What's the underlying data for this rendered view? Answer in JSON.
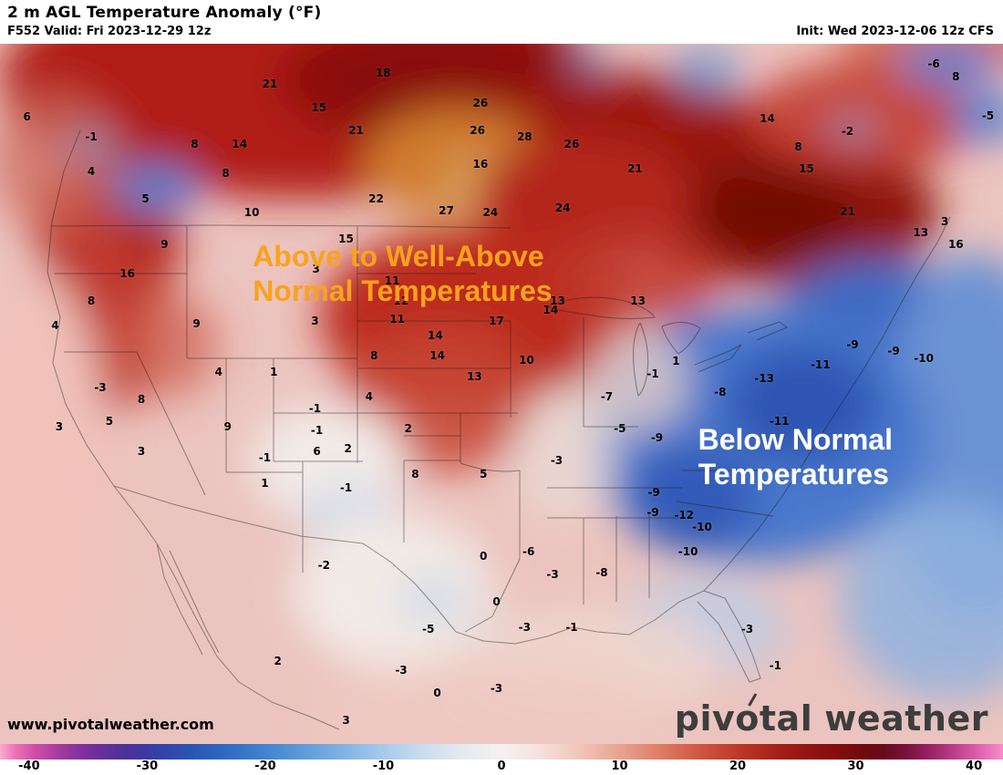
{
  "header": {
    "title": "2 m AGL Temperature Anomaly (°F)",
    "valid": "F552 Valid: Fri 2023-12-29 12z",
    "init": "Init: Wed 2023-12-06 12z CFS"
  },
  "annotations": {
    "warm": {
      "line1": "Above to Well-Above",
      "line2": "Normal Temperatures",
      "color": "#faa21c"
    },
    "cold": {
      "line1": "Below Normal",
      "line2": "Temperatures",
      "color": "#ffffff"
    }
  },
  "watermark": "www.pivotalweather.com",
  "logo": {
    "part1": "piv",
    "part2": "tal",
    "part3": "weather"
  },
  "colorbar": {
    "unit": "°F anomaly",
    "min": -40,
    "max": 40,
    "ticks": [
      "-40",
      "-30",
      "-20",
      "-10",
      "0",
      "10",
      "20",
      "30",
      "40"
    ]
  },
  "map_values": [
    {
      "v": "6",
      "x": 2.7,
      "y": 10.4
    },
    {
      "v": "-1",
      "x": 9.1,
      "y": 13.3
    },
    {
      "v": "4",
      "x": 9.1,
      "y": 18.2
    },
    {
      "v": "5",
      "x": 14.5,
      "y": 22.1
    },
    {
      "v": "8",
      "x": 19.4,
      "y": 14.3
    },
    {
      "v": "14",
      "x": 23.9,
      "y": 14.3
    },
    {
      "v": "8",
      "x": 22.5,
      "y": 18.5
    },
    {
      "v": "10",
      "x": 25.1,
      "y": 24.1
    },
    {
      "v": "21",
      "x": 26.9,
      "y": 5.7
    },
    {
      "v": "15",
      "x": 31.8,
      "y": 9.1
    },
    {
      "v": "18",
      "x": 38.2,
      "y": 4.2
    },
    {
      "v": "21",
      "x": 35.5,
      "y": 12.4
    },
    {
      "v": "22",
      "x": 37.5,
      "y": 22.1
    },
    {
      "v": "26",
      "x": 47.9,
      "y": 8.5
    },
    {
      "v": "28",
      "x": 52.3,
      "y": 13.3
    },
    {
      "v": "26",
      "x": 47.6,
      "y": 12.4
    },
    {
      "v": "16",
      "x": 47.9,
      "y": 17.2
    },
    {
      "v": "27",
      "x": 44.5,
      "y": 23.8
    },
    {
      "v": "24",
      "x": 48.9,
      "y": 24.1
    },
    {
      "v": "26",
      "x": 57.0,
      "y": 14.3
    },
    {
      "v": "24",
      "x": 56.1,
      "y": 23.4
    },
    {
      "v": "21",
      "x": 63.3,
      "y": 17.8
    },
    {
      "v": "-6",
      "x": 93.1,
      "y": 2.9
    },
    {
      "v": "8",
      "x": 95.3,
      "y": 4.7
    },
    {
      "v": "14",
      "x": 76.5,
      "y": 10.7
    },
    {
      "v": "8",
      "x": 79.6,
      "y": 14.7
    },
    {
      "v": "-2",
      "x": 84.5,
      "y": 12.5
    },
    {
      "v": "-5",
      "x": 98.5,
      "y": 10.3
    },
    {
      "v": "15",
      "x": 80.4,
      "y": 17.8
    },
    {
      "v": "21",
      "x": 84.5,
      "y": 24.0
    },
    {
      "v": "13",
      "x": 91.8,
      "y": 27.0
    },
    {
      "v": "3",
      "x": 94.2,
      "y": 25.4
    },
    {
      "v": "16",
      "x": 95.3,
      "y": 28.6
    },
    {
      "v": "9",
      "x": 16.4,
      "y": 28.6
    },
    {
      "v": "15",
      "x": 34.5,
      "y": 27.9
    },
    {
      "v": "16",
      "x": 12.7,
      "y": 32.8
    },
    {
      "v": "3",
      "x": 31.5,
      "y": 32.2
    },
    {
      "v": "11",
      "x": 39.1,
      "y": 33.9
    },
    {
      "v": "8",
      "x": 9.1,
      "y": 36.7
    },
    {
      "v": "12",
      "x": 40.0,
      "y": 36.7
    },
    {
      "v": "13",
      "x": 55.6,
      "y": 36.7
    },
    {
      "v": "13",
      "x": 63.6,
      "y": 36.7
    },
    {
      "v": "17",
      "x": 49.5,
      "y": 39.6
    },
    {
      "v": "14",
      "x": 54.9,
      "y": 38.0
    },
    {
      "v": "4",
      "x": 5.5,
      "y": 40.2
    },
    {
      "v": "9",
      "x": 19.6,
      "y": 40.0
    },
    {
      "v": "3",
      "x": 31.4,
      "y": 39.6
    },
    {
      "v": "11",
      "x": 39.6,
      "y": 39.3
    },
    {
      "v": "14",
      "x": 43.4,
      "y": 41.7
    },
    {
      "v": "8",
      "x": 37.3,
      "y": 44.5
    },
    {
      "v": "14",
      "x": 43.6,
      "y": 44.5
    },
    {
      "v": "10",
      "x": 52.5,
      "y": 45.2
    },
    {
      "v": "-3",
      "x": 10.0,
      "y": 49.1
    },
    {
      "v": "4",
      "x": 21.8,
      "y": 46.9
    },
    {
      "v": "1",
      "x": 27.3,
      "y": 46.9
    },
    {
      "v": "13",
      "x": 47.3,
      "y": 47.5
    },
    {
      "v": "-1",
      "x": 65.1,
      "y": 47.1
    },
    {
      "v": "1",
      "x": 67.4,
      "y": 45.3
    },
    {
      "v": "8",
      "x": 14.1,
      "y": 50.8
    },
    {
      "v": "4",
      "x": 36.8,
      "y": 50.4
    },
    {
      "v": "-1",
      "x": 31.4,
      "y": 52.1
    },
    {
      "v": "-7",
      "x": 60.5,
      "y": 50.4
    },
    {
      "v": "3",
      "x": 5.9,
      "y": 54.7
    },
    {
      "v": "5",
      "x": 10.9,
      "y": 53.9
    },
    {
      "v": "9",
      "x": 22.7,
      "y": 54.7
    },
    {
      "v": "-1",
      "x": 31.6,
      "y": 55.2
    },
    {
      "v": "2",
      "x": 40.7,
      "y": 54.9
    },
    {
      "v": "3",
      "x": 14.1,
      "y": 58.2
    },
    {
      "v": "-1",
      "x": 26.4,
      "y": 59.1
    },
    {
      "v": "6",
      "x": 31.6,
      "y": 58.2
    },
    {
      "v": "2",
      "x": 34.7,
      "y": 57.8
    },
    {
      "v": "8",
      "x": 41.4,
      "y": 61.5
    },
    {
      "v": "5",
      "x": 48.2,
      "y": 61.5
    },
    {
      "v": "1",
      "x": 26.4,
      "y": 62.8
    },
    {
      "v": "-1",
      "x": 34.5,
      "y": 63.4
    },
    {
      "v": "-5",
      "x": 61.8,
      "y": 54.9
    },
    {
      "v": "-9",
      "x": 65.5,
      "y": 56.3
    },
    {
      "v": "-3",
      "x": 55.5,
      "y": 59.5
    },
    {
      "v": "-9",
      "x": 65.2,
      "y": 64.1
    },
    {
      "v": "-12",
      "x": 68.2,
      "y": 67.3
    },
    {
      "v": "-10",
      "x": 70.0,
      "y": 69.0
    },
    {
      "v": "-9",
      "x": 65.1,
      "y": 66.9
    },
    {
      "v": "-6",
      "x": 52.7,
      "y": 72.5
    },
    {
      "v": "-10",
      "x": 68.6,
      "y": 72.5
    },
    {
      "v": "-8",
      "x": 60.0,
      "y": 75.5
    },
    {
      "v": "-2",
      "x": 32.3,
      "y": 74.5
    },
    {
      "v": "0",
      "x": 48.2,
      "y": 73.2
    },
    {
      "v": "-3",
      "x": 55.1,
      "y": 75.8
    },
    {
      "v": "0",
      "x": 49.5,
      "y": 79.7
    },
    {
      "v": "-5",
      "x": 42.7,
      "y": 83.6
    },
    {
      "v": "-3",
      "x": 52.3,
      "y": 83.3
    },
    {
      "v": "-1",
      "x": 57.0,
      "y": 83.3
    },
    {
      "v": "2",
      "x": 27.7,
      "y": 88.2
    },
    {
      "v": "-3",
      "x": 40.0,
      "y": 89.5
    },
    {
      "v": "0",
      "x": 43.6,
      "y": 92.7
    },
    {
      "v": "3",
      "x": 34.5,
      "y": 96.6
    },
    {
      "v": "-3",
      "x": 49.5,
      "y": 92.1
    },
    {
      "v": "-9",
      "x": 85.0,
      "y": 43.0
    },
    {
      "v": "-9",
      "x": 89.1,
      "y": 43.9
    },
    {
      "v": "-11",
      "x": 81.8,
      "y": 45.8
    },
    {
      "v": "-10",
      "x": 92.1,
      "y": 44.9
    },
    {
      "v": "-13",
      "x": 76.2,
      "y": 47.8
    },
    {
      "v": "-11",
      "x": 77.7,
      "y": 53.9
    },
    {
      "v": "-8",
      "x": 71.8,
      "y": 49.7
    },
    {
      "v": "-3",
      "x": 74.5,
      "y": 83.6
    },
    {
      "v": "-1",
      "x": 77.3,
      "y": 88.8
    }
  ]
}
